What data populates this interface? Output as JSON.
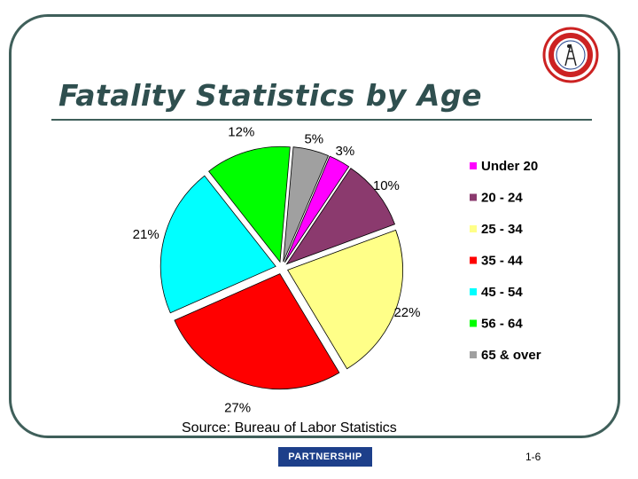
{
  "slide": {
    "title": "Fatality Statistics by Age",
    "source": "Source: Bureau of Labor Statistics",
    "page_number": "1-6",
    "partnership_logo": "PARTNERSHIP"
  },
  "chart_data": {
    "type": "pie",
    "title": "",
    "categories": [
      "Under 20",
      "20 - 24",
      "25 - 34",
      "35 - 44",
      "45 - 54",
      "56 - 64",
      "65 & over"
    ],
    "values": [
      3,
      10,
      22,
      27,
      21,
      12,
      5
    ],
    "value_labels": [
      "3%",
      "10%",
      "22%",
      "27%",
      "21%",
      "12%",
      "5%"
    ],
    "colors": [
      "#ff00ff",
      "#8b3a6e",
      "#ffff88",
      "#ff0000",
      "#00ffff",
      "#00ff00",
      "#a0a0a0"
    ],
    "exploded": true,
    "legend_position": "right"
  }
}
